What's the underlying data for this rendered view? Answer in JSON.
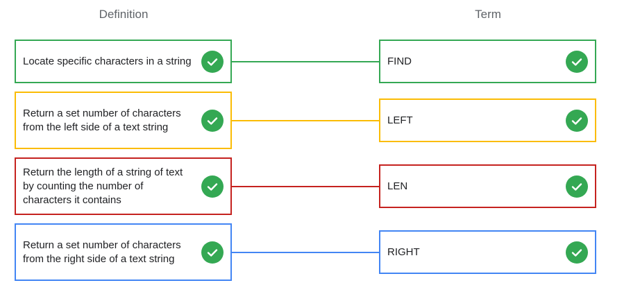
{
  "headers": {
    "definition": "Definition",
    "term": "Term"
  },
  "pairs": [
    {
      "definition": "Locate specific characters in a string",
      "term": "FIND",
      "color": "#34a853",
      "status_icon": "check-circle-icon"
    },
    {
      "definition": "Return a set number of characters from the left side of a text string",
      "term": "LEFT",
      "color": "#fbbc04",
      "status_icon": "check-circle-icon"
    },
    {
      "definition": "Return the length of a string of text by counting the number of characters it contains",
      "term": "LEN",
      "color": "#c5221f",
      "status_icon": "check-circle-icon"
    },
    {
      "definition": "Return a set number of characters from the right side of a text string",
      "term": "RIGHT",
      "color": "#4285f4",
      "status_icon": "check-circle-icon"
    }
  ]
}
